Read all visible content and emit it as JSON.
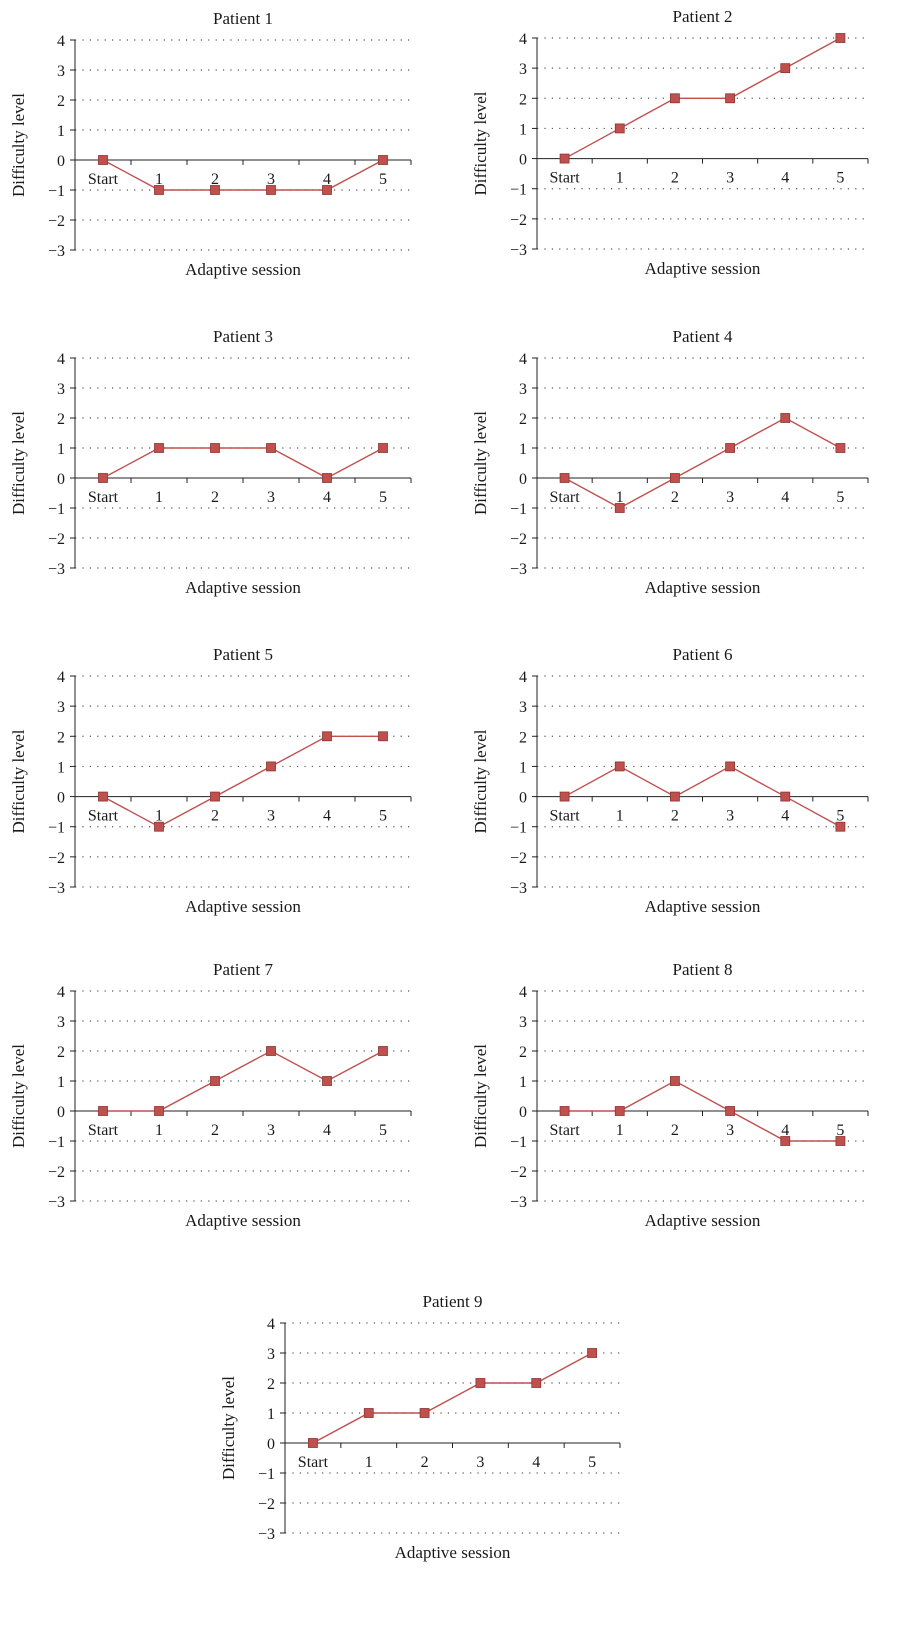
{
  "chart_data": [
    {
      "type": "line",
      "title": "Patient 1",
      "xlabel": "Adaptive session",
      "ylabel": "Difficulty level",
      "categories": [
        "Start",
        "1",
        "2",
        "3",
        "4",
        "5"
      ],
      "values": [
        0,
        -1,
        -1,
        -1,
        -1,
        0
      ],
      "ylim": [
        -3,
        4
      ],
      "yticks": [
        "4",
        "3",
        "2",
        "1",
        "0",
        "−1",
        "−2",
        "−3"
      ],
      "grid": "dotted horizontal",
      "color": "#c0504d"
    },
    {
      "type": "line",
      "title": "Patient 2",
      "xlabel": "Adaptive session",
      "ylabel": "Difficulty level",
      "categories": [
        "Start",
        "1",
        "2",
        "3",
        "4",
        "5"
      ],
      "values": [
        0,
        1,
        2,
        2,
        3,
        4
      ],
      "ylim": [
        -3,
        4
      ],
      "yticks": [
        "4",
        "3",
        "2",
        "1",
        "0",
        "−1",
        "−2",
        "−3"
      ],
      "grid": "dotted horizontal",
      "color": "#c0504d"
    },
    {
      "type": "line",
      "title": "Patient 3",
      "xlabel": "Adaptive session",
      "ylabel": "Difficulty level",
      "categories": [
        "Start",
        "1",
        "2",
        "3",
        "4",
        "5"
      ],
      "values": [
        0,
        1,
        1,
        1,
        0,
        1
      ],
      "ylim": [
        -3,
        4
      ],
      "yticks": [
        "4",
        "3",
        "2",
        "1",
        "0",
        "−1",
        "−2",
        "−3"
      ],
      "grid": "dotted horizontal",
      "color": "#c0504d"
    },
    {
      "type": "line",
      "title": "Patient 4",
      "xlabel": "Adaptive session",
      "ylabel": "Difficulty level",
      "categories": [
        "Start",
        "1",
        "2",
        "3",
        "4",
        "5"
      ],
      "values": [
        0,
        -1,
        0,
        1,
        2,
        1
      ],
      "ylim": [
        -3,
        4
      ],
      "yticks": [
        "4",
        "3",
        "2",
        "1",
        "0",
        "−1",
        "−2",
        "−3"
      ],
      "grid": "dotted horizontal",
      "color": "#c0504d"
    },
    {
      "type": "line",
      "title": "Patient 5",
      "xlabel": "Adaptive session",
      "ylabel": "Difficulty level",
      "categories": [
        "Start",
        "1",
        "2",
        "3",
        "4",
        "5"
      ],
      "values": [
        0,
        -1,
        0,
        1,
        2,
        2
      ],
      "ylim": [
        -3,
        4
      ],
      "yticks": [
        "4",
        "3",
        "2",
        "1",
        "0",
        "−1",
        "−2",
        "−3"
      ],
      "grid": "dotted horizontal",
      "color": "#c0504d"
    },
    {
      "type": "line",
      "title": "Patient 6",
      "xlabel": "Adaptive session",
      "ylabel": "Difficulty level",
      "categories": [
        "Start",
        "1",
        "2",
        "3",
        "4",
        "5"
      ],
      "values": [
        0,
        1,
        0,
        1,
        0,
        -1
      ],
      "ylim": [
        -3,
        4
      ],
      "yticks": [
        "4",
        "3",
        "2",
        "1",
        "0",
        "−1",
        "−2",
        "−3"
      ],
      "grid": "dotted horizontal",
      "color": "#c0504d"
    },
    {
      "type": "line",
      "title": "Patient 7",
      "xlabel": "Adaptive session",
      "ylabel": "Difficulty level",
      "categories": [
        "Start",
        "1",
        "2",
        "3",
        "4",
        "5"
      ],
      "values": [
        0,
        0,
        1,
        2,
        1,
        2
      ],
      "ylim": [
        -3,
        4
      ],
      "yticks": [
        "4",
        "3",
        "2",
        "1",
        "0",
        "−1",
        "−2",
        "−3"
      ],
      "grid": "dotted horizontal",
      "color": "#c0504d"
    },
    {
      "type": "line",
      "title": "Patient 8",
      "xlabel": "Adaptive session",
      "ylabel": "Difficulty level",
      "categories": [
        "Start",
        "1",
        "2",
        "3",
        "4",
        "5"
      ],
      "values": [
        0,
        0,
        1,
        0,
        -1,
        -1
      ],
      "ylim": [
        -3,
        4
      ],
      "yticks": [
        "4",
        "3",
        "2",
        "1",
        "0",
        "−1",
        "−2",
        "−3"
      ],
      "grid": "dotted horizontal",
      "color": "#c0504d"
    },
    {
      "type": "line",
      "title": "Patient 9",
      "xlabel": "Adaptive session",
      "ylabel": "Difficulty level",
      "categories": [
        "Start",
        "1",
        "2",
        "3",
        "4",
        "5"
      ],
      "values": [
        0,
        1,
        1,
        2,
        2,
        3
      ],
      "ylim": [
        -3,
        4
      ],
      "yticks": [
        "4",
        "3",
        "2",
        "1",
        "0",
        "−1",
        "−2",
        "−3"
      ],
      "grid": "dotted horizontal",
      "color": "#c0504d"
    }
  ]
}
